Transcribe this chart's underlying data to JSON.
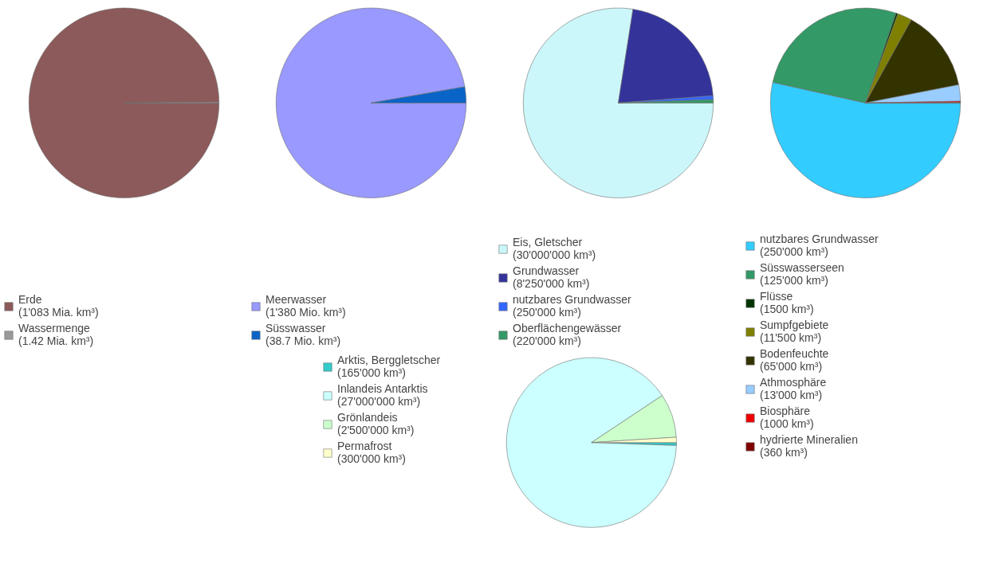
{
  "chart_data": [
    {
      "type": "pie",
      "categories": [
        "Erde",
        "Wassermenge"
      ],
      "values": [
        1083,
        1.42
      ],
      "value_labels": [
        "(1'083 Mia. km³)",
        "(1.42 Mia. km³)"
      ],
      "colors": [
        "#8c5a5a",
        "#999999"
      ],
      "legend": "bottom"
    },
    {
      "type": "pie",
      "categories": [
        "Meerwasser",
        "Süsswasser"
      ],
      "values": [
        1380,
        38.7
      ],
      "value_labels": [
        "(1'380 Mio. km³)",
        "(38.7 Mio. km³)"
      ],
      "colors": [
        "#9999ff",
        "#0a64c8"
      ],
      "legend": "bottom"
    },
    {
      "type": "pie",
      "categories": [
        "Eis, Gletscher",
        "Grundwasser",
        "nutzbares Grundwasser",
        "Oberflächengewässer"
      ],
      "values": [
        30000000,
        8250000,
        250000,
        220000
      ],
      "value_labels": [
        "(30'000'000 km³)",
        "(8'250'000 km³)",
        "(250'000 km³)",
        "(220'000 km³)"
      ],
      "colors": [
        "#ccf7fa",
        "#33339a",
        "#3366ff",
        "#339966"
      ],
      "legend": "bottom"
    },
    {
      "type": "pie",
      "categories": [
        "nutzbares Grundwasser",
        "Süsswasserseen",
        "Flüsse",
        "Sumpfgebiete",
        "Bodenfeuchte",
        "Athmosphäre",
        "Biosphäre",
        "hydrierte Mineralien"
      ],
      "values": [
        250000,
        125000,
        1500,
        11500,
        65000,
        13000,
        1000,
        360
      ],
      "value_labels": [
        "(250'000 km³)",
        "(125'000 km³)",
        "(1500 km³)",
        "(11'500 km³)",
        "(65'000 km³)",
        "(13'000 km³)",
        "(1000 km³)",
        "(360 km³)"
      ],
      "colors": [
        "#33ccff",
        "#339966",
        "#003300",
        "#808000",
        "#333300",
        "#99ccff",
        "#ee0000",
        "#800000"
      ],
      "legend": "bottom"
    },
    {
      "type": "pie",
      "categories": [
        "Arktis, Berggletscher",
        "Inlandeis Antarktis",
        "Grönlandeis",
        "Permafrost"
      ],
      "values": [
        165000,
        27000000,
        2500000,
        300000
      ],
      "value_labels": [
        "(165'000 km³)",
        "(27'000'000 km³)",
        "(2'500'000 km³)",
        "(300'000 km³)"
      ],
      "colors": [
        "#33cccc",
        "#ccffff",
        "#ccffcc",
        "#ffffcc"
      ],
      "legend": "left"
    }
  ]
}
